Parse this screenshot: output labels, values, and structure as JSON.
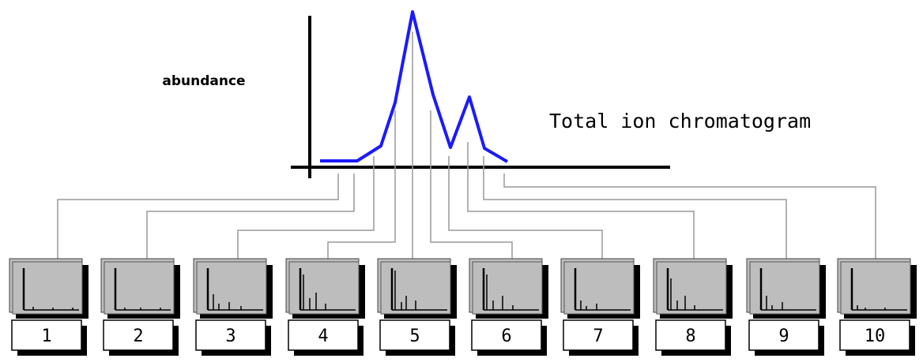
{
  "axis_label": "abundance",
  "title": "Total ion chromatogram",
  "spectra": [
    {
      "label": "1"
    },
    {
      "label": "2"
    },
    {
      "label": "3"
    },
    {
      "label": "4"
    },
    {
      "label": "5"
    },
    {
      "label": "6"
    },
    {
      "label": "7"
    },
    {
      "label": "8"
    },
    {
      "label": "9"
    },
    {
      "label": "10"
    }
  ]
}
